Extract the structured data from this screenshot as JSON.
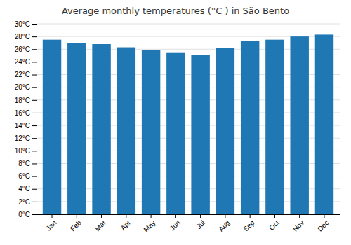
{
  "chart_data": {
    "type": "bar",
    "title": "Average monthly temperatures (°C ) in São Bento",
    "categories": [
      "Jan",
      "Feb",
      "Mar",
      "Apr",
      "May",
      "Jun",
      "Jul",
      "Aug",
      "Sep",
      "Oct",
      "Nov",
      "Dec"
    ],
    "values": [
      27.5,
      27.0,
      26.8,
      26.3,
      25.9,
      25.4,
      25.1,
      26.2,
      27.3,
      27.5,
      28.0,
      28.3
    ],
    "ylim": [
      0,
      30
    ],
    "yticks": [
      {
        "value": 0,
        "label": "0°C"
      },
      {
        "value": 2,
        "label": "2°C"
      },
      {
        "value": 4,
        "label": "4°C"
      },
      {
        "value": 6,
        "label": "6°C"
      },
      {
        "value": 8,
        "label": "8°C"
      },
      {
        "value": 10,
        "label": "10°C"
      },
      {
        "value": 12,
        "label": "12°C"
      },
      {
        "value": 14,
        "label": "14°C"
      },
      {
        "value": 16,
        "label": "16°C"
      },
      {
        "value": 18,
        "label": "18°C"
      },
      {
        "value": 20,
        "label": "20°C"
      },
      {
        "value": 22,
        "label": "22°C"
      },
      {
        "value": 24,
        "label": "24°C"
      },
      {
        "value": 26,
        "label": "26°C"
      },
      {
        "value": 28,
        "label": "28°C"
      },
      {
        "value": 30,
        "label": "30°C"
      }
    ],
    "grid": true
  }
}
